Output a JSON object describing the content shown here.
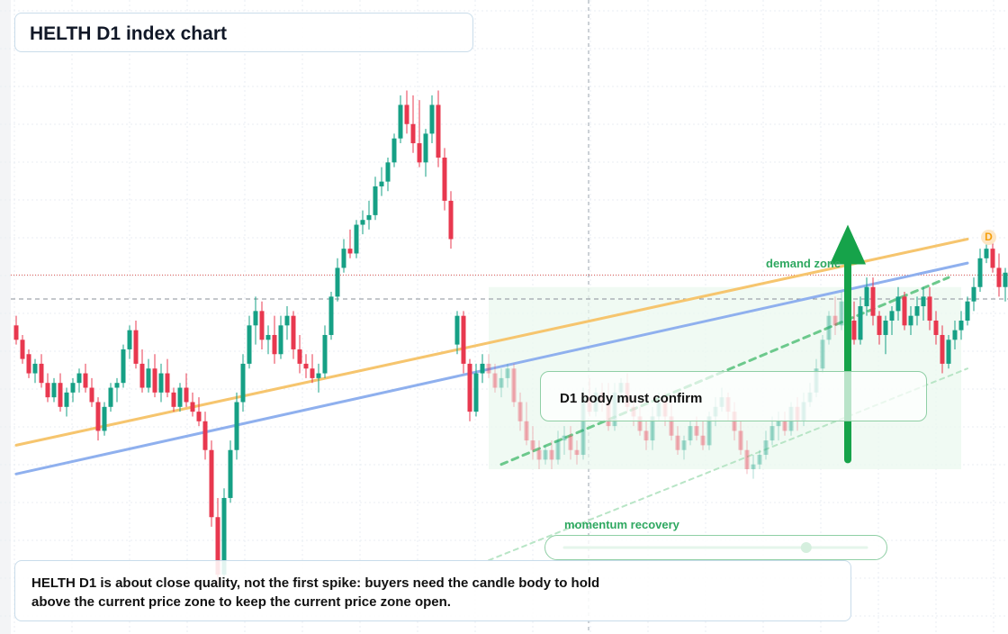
{
  "title": "HELTH D1 index chart",
  "note": {
    "line1": "HELTH D1 is about close quality, not the first spike: buyers need the candle body to hold",
    "line2": "above the current price zone to keep the current price zone open."
  },
  "labels": {
    "confirm": "D1 body must confirm",
    "demand_zone": "demand zone",
    "momentum": "momentum recovery",
    "badge": "D"
  },
  "momentum_value": 0.8,
  "colors": {
    "up": "#16a085",
    "down": "#e8384f",
    "trend_orange": "#f6c56e",
    "trend_blue": "#8fb0ee",
    "accent_green": "#16a34a",
    "zone_green": "#eaf8ee"
  },
  "chart_data": {
    "type": "candlestick",
    "timeframe": "D1",
    "symbol": "HELTH",
    "grid": true,
    "candles": [
      [
        64,
        66,
        60,
        61
      ],
      [
        61,
        62,
        56,
        57
      ],
      [
        58,
        59,
        53,
        54
      ],
      [
        54,
        57,
        52,
        56
      ],
      [
        56,
        58,
        51,
        52
      ],
      [
        52,
        54,
        48,
        49
      ],
      [
        49,
        53,
        48,
        52
      ],
      [
        52,
        54,
        46,
        47
      ],
      [
        47,
        51,
        45,
        50
      ],
      [
        50,
        53,
        48,
        52
      ],
      [
        52,
        55,
        50,
        54
      ],
      [
        54,
        56,
        50,
        51
      ],
      [
        51,
        53,
        47,
        48
      ],
      [
        48,
        49,
        40,
        42
      ],
      [
        42,
        48,
        41,
        47
      ],
      [
        47,
        52,
        46,
        51
      ],
      [
        51,
        53,
        48,
        52
      ],
      [
        52,
        60,
        51,
        59
      ],
      [
        59,
        64,
        57,
        63
      ],
      [
        63,
        65,
        55,
        56
      ],
      [
        56,
        59,
        50,
        51
      ],
      [
        51,
        57,
        50,
        55
      ],
      [
        55,
        58,
        49,
        50
      ],
      [
        50,
        56,
        48,
        54
      ],
      [
        54,
        57,
        49,
        50
      ],
      [
        50,
        51,
        46,
        47
      ],
      [
        47,
        52,
        46,
        51
      ],
      [
        51,
        54,
        47,
        48
      ],
      [
        48,
        50,
        45,
        46
      ],
      [
        46,
        49,
        43,
        44
      ],
      [
        44,
        46,
        36,
        38
      ],
      [
        38,
        40,
        22,
        24
      ],
      [
        24,
        28,
        10,
        12
      ],
      [
        12,
        30,
        11,
        28
      ],
      [
        28,
        40,
        27,
        38
      ],
      [
        38,
        50,
        36,
        48
      ],
      [
        48,
        58,
        46,
        56
      ],
      [
        56,
        66,
        55,
        64
      ],
      [
        64,
        70,
        60,
        67
      ],
      [
        67,
        69,
        59,
        61
      ],
      [
        61,
        64,
        58,
        62
      ],
      [
        62,
        66,
        56,
        58
      ],
      [
        58,
        66,
        57,
        64
      ],
      [
        64,
        68,
        61,
        66
      ],
      [
        66,
        67,
        57,
        59
      ],
      [
        59,
        62,
        54,
        56
      ],
      [
        56,
        58,
        53,
        55
      ],
      [
        55,
        58,
        52,
        53
      ],
      [
        53,
        56,
        50,
        54
      ],
      [
        54,
        64,
        53,
        62
      ],
      [
        62,
        71,
        61,
        70
      ],
      [
        70,
        78,
        69,
        76
      ],
      [
        76,
        82,
        75,
        80
      ],
      [
        80,
        84,
        78,
        79
      ],
      [
        79,
        86,
        78,
        85
      ],
      [
        85,
        88,
        83,
        86
      ],
      [
        86,
        90,
        84,
        87
      ],
      [
        87,
        95,
        86,
        93
      ],
      [
        93,
        97,
        91,
        94
      ],
      [
        94,
        99,
        92,
        98
      ],
      [
        98,
        104,
        97,
        103
      ],
      [
        103,
        112,
        102,
        110
      ],
      [
        110,
        113,
        104,
        106
      ],
      [
        106,
        112,
        100,
        102
      ],
      [
        102,
        111,
        97,
        98
      ],
      [
        98,
        105,
        95,
        104
      ],
      [
        104,
        112,
        102,
        110
      ],
      [
        110,
        113,
        97,
        99
      ],
      [
        99,
        101,
        88,
        90
      ],
      [
        90,
        92,
        80,
        82
      ],
      [
        60,
        67,
        58,
        66
      ],
      [
        66,
        67,
        54,
        56
      ],
      [
        56,
        57,
        44,
        46
      ],
      [
        46,
        56,
        45,
        54
      ],
      [
        54,
        58,
        52,
        56
      ],
      [
        56,
        58,
        53,
        54
      ],
      [
        54,
        56,
        50,
        51
      ],
      [
        51,
        55,
        49,
        53
      ],
      [
        53,
        56,
        51,
        55
      ],
      [
        55,
        56,
        47,
        48
      ],
      [
        48,
        50,
        42,
        44
      ],
      [
        44,
        48,
        39,
        40
      ],
      [
        40,
        43,
        36,
        38
      ],
      [
        38,
        40,
        34,
        36
      ],
      [
        36,
        39,
        35,
        38
      ],
      [
        38,
        40,
        34,
        36
      ],
      [
        36,
        42,
        35,
        40
      ],
      [
        40,
        43,
        37,
        41
      ],
      [
        41,
        43,
        36,
        38
      ],
      [
        38,
        40,
        35,
        37
      ],
      [
        37,
        51,
        36,
        49
      ],
      [
        49,
        53,
        45,
        46
      ],
      [
        46,
        51,
        45,
        50
      ],
      [
        50,
        52,
        46,
        48
      ],
      [
        48,
        52,
        42,
        43
      ],
      [
        43,
        52,
        42,
        50
      ],
      [
        50,
        53,
        48,
        52
      ],
      [
        52,
        54,
        46,
        47
      ],
      [
        47,
        49,
        43,
        45
      ],
      [
        45,
        47,
        41,
        42
      ],
      [
        42,
        44,
        38,
        40
      ],
      [
        40,
        47,
        38,
        45
      ],
      [
        45,
        50,
        44,
        48
      ],
      [
        48,
        50,
        43,
        45
      ],
      [
        45,
        48,
        40,
        41
      ],
      [
        41,
        43,
        37,
        38
      ],
      [
        38,
        41,
        36,
        40
      ],
      [
        40,
        44,
        39,
        43
      ],
      [
        43,
        45,
        40,
        41
      ],
      [
        41,
        44,
        38,
        39
      ],
      [
        39,
        46,
        38,
        45
      ],
      [
        45,
        49,
        43,
        47
      ],
      [
        47,
        51,
        46,
        49
      ],
      [
        49,
        50,
        44,
        46
      ],
      [
        46,
        48,
        40,
        42
      ],
      [
        42,
        44,
        37,
        38
      ],
      [
        38,
        40,
        33,
        34
      ],
      [
        34,
        37,
        32,
        35
      ],
      [
        35,
        38,
        34,
        37
      ],
      [
        37,
        42,
        36,
        40
      ],
      [
        40,
        45,
        39,
        43
      ],
      [
        43,
        46,
        40,
        44
      ],
      [
        44,
        46,
        41,
        42
      ],
      [
        42,
        48,
        41,
        47
      ],
      [
        47,
        49,
        42,
        44
      ],
      [
        44,
        50,
        43,
        48
      ],
      [
        48,
        52,
        47,
        50
      ],
      [
        50,
        57,
        49,
        55
      ],
      [
        55,
        62,
        54,
        61
      ],
      [
        61,
        67,
        60,
        66
      ],
      [
        66,
        70,
        62,
        64
      ],
      [
        64,
        71,
        63,
        69
      ],
      [
        69,
        71,
        63,
        65
      ],
      [
        65,
        69,
        60,
        61
      ],
      [
        61,
        70,
        60,
        68
      ],
      [
        68,
        74,
        66,
        72
      ],
      [
        72,
        74,
        64,
        66
      ],
      [
        66,
        67,
        60,
        62
      ],
      [
        62,
        66,
        58,
        65
      ],
      [
        65,
        68,
        62,
        67
      ],
      [
        67,
        72,
        65,
        70
      ],
      [
        70,
        71,
        63,
        64
      ],
      [
        64,
        68,
        62,
        66
      ],
      [
        66,
        70,
        64,
        68
      ],
      [
        68,
        72,
        65,
        70
      ],
      [
        70,
        72,
        63,
        65
      ],
      [
        65,
        67,
        60,
        62
      ],
      [
        62,
        64,
        54,
        56
      ],
      [
        56,
        62,
        55,
        61
      ],
      [
        61,
        65,
        59,
        63
      ],
      [
        63,
        67,
        61,
        65
      ],
      [
        65,
        70,
        64,
        69
      ],
      [
        69,
        74,
        67,
        72
      ],
      [
        72,
        80,
        71,
        78
      ],
      [
        78,
        82,
        77,
        80
      ],
      [
        80,
        82,
        75,
        76
      ],
      [
        76,
        79,
        70,
        72
      ],
      [
        72,
        76,
        69,
        75
      ],
      [
        75,
        80,
        73,
        78
      ]
    ],
    "trendlines": [
      {
        "style": "solid",
        "color": "orange",
        "from": [
          0,
          39
        ],
        "to": [
          151,
          82
        ]
      },
      {
        "style": "solid",
        "color": "blue",
        "from": [
          0,
          33
        ],
        "to": [
          151,
          77
        ]
      },
      {
        "style": "dashed",
        "color": "green",
        "from": [
          77,
          35
        ],
        "to": [
          148,
          74
        ]
      },
      {
        "style": "dotted",
        "color": "green",
        "from": [
          75,
          15
        ],
        "to": [
          151,
          55
        ]
      }
    ],
    "levels": [
      {
        "value": 74.5,
        "style": "dotted",
        "color": "red"
      },
      {
        "value": 69.5,
        "style": "dashed",
        "color": "gray"
      }
    ],
    "demand_zone": {
      "from": 75,
      "to": 150,
      "low": 34,
      "high": 72
    },
    "arrow": {
      "x": 132,
      "from": 36,
      "to": 85,
      "direction": "up"
    },
    "ylim": [
      0,
      130
    ]
  }
}
